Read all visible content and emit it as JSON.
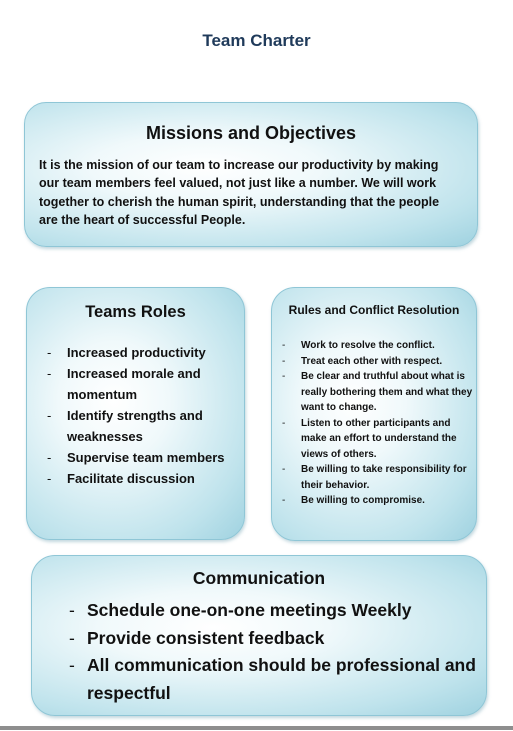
{
  "document": {
    "title": "Team Charter"
  },
  "missions": {
    "heading": "Missions and Objectives",
    "text": "It is the mission of our team to increase our productivity by making our team members feel valued, not just like a number. We will work together to cherish the human spirit, understanding that the people are the heart of successful People."
  },
  "roles": {
    "heading": "Teams Roles",
    "items": [
      "Increased productivity",
      "Increased morale and momentum",
      "Identify strengths and weaknesses",
      "Supervise team members",
      "Facilitate discussion"
    ]
  },
  "rules": {
    "heading": "Rules and Conflict Resolution",
    "items": [
      "Work to resolve the conflict.",
      "Treat each other with respect.",
      "Be clear and truthful about what is really bothering them and what they want to change.",
      "Listen to other participants and make an effort to understand the views of others.",
      "Be willing to take responsibility for their behavior.",
      "Be willing to compromise."
    ]
  },
  "communication": {
    "heading": "Communication",
    "items": [
      "Schedule one-on-one meetings Weekly",
      "Provide consistent feedback",
      "All communication should be professional and respectful"
    ]
  },
  "colors": {
    "title": "#1f3a5a",
    "box_border": "#8fc6d6",
    "box_fill_edge": "#9fd2e0"
  }
}
